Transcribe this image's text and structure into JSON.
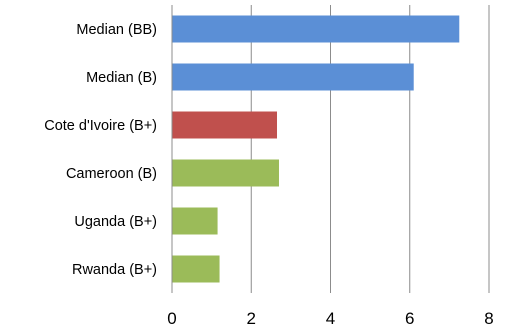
{
  "chart_data": {
    "type": "bar",
    "orientation": "horizontal",
    "categories": [
      "Median (BB)",
      "Median (B)",
      "Cote d'Ivoire (B+)",
      "Cameroon (B)",
      "Uganda (B+)",
      "Rwanda (B+)"
    ],
    "values": [
      7.25,
      6.1,
      2.65,
      2.7,
      1.15,
      1.2
    ],
    "colors": [
      "#5B8FD6",
      "#5B8FD6",
      "#C0504D",
      "#9BBB59",
      "#9BBB59",
      "#9BBB59"
    ],
    "xlim": [
      0,
      8
    ],
    "xticks": [
      "0",
      "2",
      "4",
      "6",
      "8"
    ],
    "grid": "vertical",
    "title": "",
    "xlabel": "",
    "ylabel": ""
  }
}
